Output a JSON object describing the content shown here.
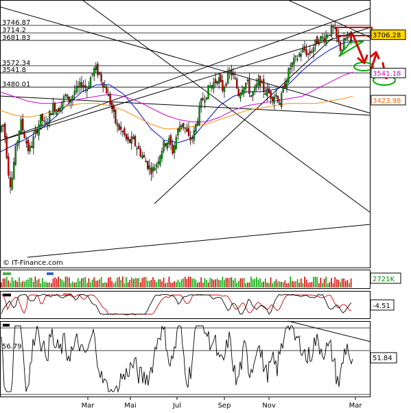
{
  "watermark": "© IT-Finance.com",
  "main_panel": {
    "level_labels": [
      {
        "text": "3746.87",
        "value": 3746.87
      },
      {
        "text": "3714.2",
        "value": 3714.2
      },
      {
        "text": "3681.83",
        "value": 3681.83
      },
      {
        "text": "3572.34",
        "value": 3572.34
      },
      {
        "text": "3541.8",
        "value": 3541.8
      },
      {
        "text": "3480.01",
        "value": 3480.01
      }
    ],
    "tags": [
      {
        "text": "3706.28",
        "value": 3706.28,
        "bg": "#ffd700",
        "fg": "#000000",
        "border": "#000000"
      },
      {
        "text": "3541.18",
        "value": 3541.18,
        "bg": "#ffffff",
        "fg": "#cc00cc",
        "border": "#000000"
      },
      {
        "text": "3423.98",
        "value": 3423.98,
        "bg": "#ffffff",
        "fg": "#ff6600",
        "border": "#000000"
      }
    ]
  },
  "volume_panel": {
    "label": "2721K"
  },
  "macd_panel": {
    "label": "-4.51"
  },
  "rsi_panel": {
    "level_label": "56.79",
    "label": "51.84"
  },
  "x_axis": {
    "months": [
      "Mar",
      "Mai",
      "Jul",
      "Sep",
      "Nov",
      "Mar"
    ]
  },
  "colors": {
    "up_candle": "#00aa00",
    "down_candle": "#dd0000",
    "ma_short": "#0000cc",
    "ma_mid": "#cc00cc",
    "ma_long": "#ff8800",
    "arrows": "#dd0000",
    "box": "#cc0000",
    "ellipse_green": "#00aa00"
  },
  "chart_data": {
    "type": "candlestick",
    "y_range": [
      2900,
      3800
    ],
    "price_path": [
      [
        0,
        3290
      ],
      [
        4,
        3330
      ],
      [
        8,
        3250
      ],
      [
        12,
        3120
      ],
      [
        16,
        3050
      ],
      [
        20,
        3150
      ],
      [
        24,
        3230
      ],
      [
        30,
        3330
      ],
      [
        36,
        3270
      ],
      [
        42,
        3200
      ],
      [
        48,
        3250
      ],
      [
        54,
        3300
      ],
      [
        60,
        3350
      ],
      [
        66,
        3310
      ],
      [
        72,
        3360
      ],
      [
        78,
        3400
      ],
      [
        84,
        3380
      ],
      [
        90,
        3420
      ],
      [
        96,
        3440
      ],
      [
        102,
        3420
      ],
      [
        108,
        3460
      ],
      [
        114,
        3470
      ],
      [
        120,
        3500
      ],
      [
        126,
        3470
      ],
      [
        132,
        3520
      ],
      [
        138,
        3560
      ],
      [
        144,
        3540
      ],
      [
        150,
        3500
      ],
      [
        156,
        3460
      ],
      [
        162,
        3400
      ],
      [
        168,
        3330
      ],
      [
        174,
        3300
      ],
      [
        180,
        3280
      ],
      [
        186,
        3240
      ],
      [
        192,
        3250
      ],
      [
        198,
        3230
      ],
      [
        204,
        3200
      ],
      [
        210,
        3170
      ],
      [
        216,
        3140
      ],
      [
        222,
        3120
      ],
      [
        228,
        3150
      ],
      [
        234,
        3200
      ],
      [
        240,
        3240
      ],
      [
        246,
        3250
      ],
      [
        252,
        3200
      ],
      [
        258,
        3280
      ],
      [
        264,
        3330
      ],
      [
        270,
        3300
      ],
      [
        276,
        3250
      ],
      [
        282,
        3270
      ],
      [
        288,
        3350
      ],
      [
        294,
        3420
      ],
      [
        300,
        3450
      ],
      [
        306,
        3480
      ],
      [
        312,
        3500
      ],
      [
        318,
        3520
      ],
      [
        324,
        3470
      ],
      [
        330,
        3510
      ],
      [
        336,
        3550
      ],
      [
        342,
        3510
      ],
      [
        348,
        3450
      ],
      [
        354,
        3490
      ],
      [
        360,
        3500
      ],
      [
        366,
        3440
      ],
      [
        372,
        3470
      ],
      [
        378,
        3510
      ],
      [
        384,
        3470
      ],
      [
        390,
        3460
      ],
      [
        396,
        3440
      ],
      [
        402,
        3450
      ],
      [
        408,
        3410
      ],
      [
        414,
        3480
      ],
      [
        420,
        3540
      ],
      [
        426,
        3580
      ],
      [
        432,
        3600
      ],
      [
        438,
        3630
      ],
      [
        444,
        3640
      ],
      [
        450,
        3620
      ],
      [
        456,
        3650
      ],
      [
        462,
        3680
      ],
      [
        468,
        3690
      ],
      [
        474,
        3700
      ],
      [
        480,
        3720
      ],
      [
        486,
        3730
      ],
      [
        490,
        3700
      ],
      [
        494,
        3660
      ],
      [
        498,
        3640
      ],
      [
        502,
        3680
      ],
      [
        506,
        3700
      ],
      [
        510,
        3690
      ],
      [
        514,
        3660
      ]
    ],
    "moving_averages": [
      {
        "name": "",
        "color": "#0000cc",
        "points": [
          [
            0,
            3200
          ],
          [
            20,
            3230
          ],
          [
            40,
            3260
          ],
          [
            60,
            3300
          ],
          [
            80,
            3350
          ],
          [
            100,
            3410
          ],
          [
            120,
            3460
          ],
          [
            140,
            3490
          ],
          [
            160,
            3490
          ],
          [
            180,
            3450
          ],
          [
            200,
            3380
          ],
          [
            220,
            3300
          ],
          [
            240,
            3250
          ],
          [
            260,
            3240
          ],
          [
            280,
            3260
          ],
          [
            300,
            3330
          ],
          [
            320,
            3400
          ],
          [
            340,
            3440
          ],
          [
            360,
            3460
          ],
          [
            380,
            3460
          ],
          [
            400,
            3470
          ],
          [
            420,
            3490
          ],
          [
            440,
            3550
          ],
          [
            460,
            3600
          ],
          [
            480,
            3640
          ],
          [
            500,
            3670
          ],
          [
            514,
            3680
          ]
        ]
      },
      {
        "name": "",
        "color": "#cc00cc",
        "points": [
          [
            0,
            3460
          ],
          [
            20,
            3440
          ],
          [
            40,
            3420
          ],
          [
            60,
            3410
          ],
          [
            80,
            3410
          ],
          [
            100,
            3420
          ],
          [
            120,
            3430
          ],
          [
            140,
            3440
          ],
          [
            160,
            3450
          ],
          [
            180,
            3440
          ],
          [
            200,
            3420
          ],
          [
            220,
            3390
          ],
          [
            240,
            3360
          ],
          [
            260,
            3340
          ],
          [
            280,
            3330
          ],
          [
            300,
            3330
          ],
          [
            320,
            3350
          ],
          [
            340,
            3380
          ],
          [
            360,
            3400
          ],
          [
            380,
            3410
          ],
          [
            400,
            3420
          ],
          [
            420,
            3430
          ],
          [
            440,
            3440
          ],
          [
            460,
            3470
          ],
          [
            480,
            3500
          ],
          [
            500,
            3530
          ],
          [
            514,
            3545
          ]
        ]
      },
      {
        "name": "",
        "color": "#ff8800",
        "points": [
          [
            0,
            3380
          ],
          [
            20,
            3360
          ],
          [
            40,
            3350
          ],
          [
            60,
            3360
          ],
          [
            80,
            3380
          ],
          [
            100,
            3400
          ],
          [
            120,
            3410
          ],
          [
            140,
            3410
          ],
          [
            160,
            3400
          ],
          [
            180,
            3380
          ],
          [
            200,
            3350
          ],
          [
            220,
            3320
          ],
          [
            240,
            3300
          ],
          [
            260,
            3300
          ],
          [
            280,
            3310
          ],
          [
            300,
            3320
          ],
          [
            320,
            3340
          ],
          [
            340,
            3360
          ],
          [
            360,
            3380
          ],
          [
            380,
            3390
          ],
          [
            400,
            3400
          ],
          [
            420,
            3410
          ],
          [
            440,
            3410
          ],
          [
            460,
            3410
          ],
          [
            480,
            3420
          ],
          [
            500,
            3430
          ],
          [
            514,
            3440
          ]
        ]
      }
    ],
    "rsi_range": [
      0,
      100
    ]
  }
}
